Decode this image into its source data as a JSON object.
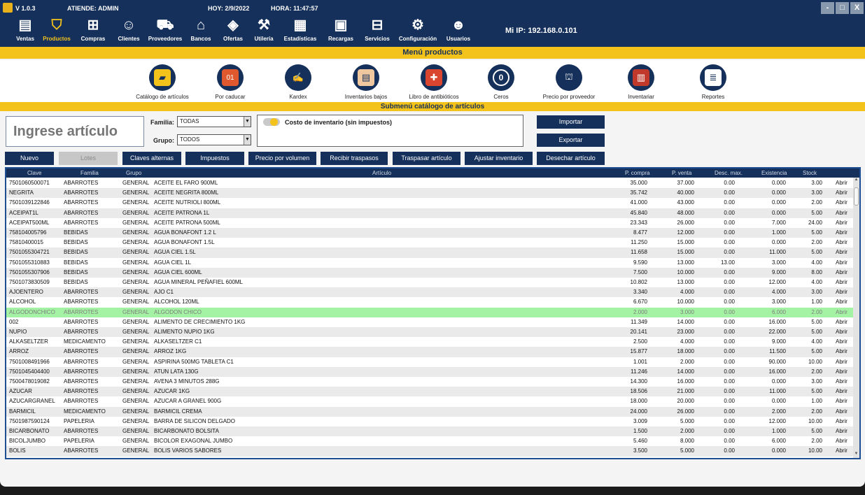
{
  "titlebar": {
    "version": "V 1.0.3",
    "attends": "ATIENDE: ADMIN",
    "date": "HOY: 2/9/2022",
    "time": "HORA: 11:47:57",
    "controls": [
      "-",
      "□",
      "X"
    ]
  },
  "nav": {
    "items": [
      {
        "label": "Ventas",
        "icon": "cash-register-icon"
      },
      {
        "label": "Productos",
        "icon": "basket-icon"
      },
      {
        "label": "Compras",
        "icon": "cart-icon"
      },
      {
        "label": "Clientes",
        "icon": "customers-icon"
      },
      {
        "label": "Proveedores",
        "icon": "delivery-icon"
      },
      {
        "label": "Bancos",
        "icon": "bank-icon"
      },
      {
        "label": "Ofertas",
        "icon": "tag-icon"
      },
      {
        "label": "Utilería",
        "icon": "tools-icon"
      },
      {
        "label": "Estadísticas",
        "icon": "stats-icon"
      },
      {
        "label": "Recargas",
        "icon": "phone-recharge-icon"
      },
      {
        "label": "Servicios",
        "icon": "services-icon"
      },
      {
        "label": "Configuración",
        "icon": "gear-icon"
      },
      {
        "label": "Usuarios",
        "icon": "users-icon"
      }
    ],
    "active": "Productos",
    "ip": "Mi IP: 192.168.0.101"
  },
  "menu_title": "Menú productos",
  "submenu": {
    "items": [
      {
        "label": "Catálogo de artículos",
        "icon": "catalog-icon",
        "color": "#f3c21b"
      },
      {
        "label": "Por caducar",
        "icon": "calendar-icon",
        "color": "#e0592e"
      },
      {
        "label": "Kardex",
        "icon": "kardex-icon",
        "color": "#15305a"
      },
      {
        "label": "Inventarios bajos",
        "icon": "low-inventory-icon",
        "color": "#f0c8a0"
      },
      {
        "label": "Libro de antibióticos",
        "icon": "medical-book-icon",
        "color": "#d9452e"
      },
      {
        "label": "Ceros",
        "icon": "zero-icon",
        "color": "#15305a"
      },
      {
        "label": "Precio por proveedor",
        "icon": "supplier-price-icon",
        "color": "#15305a"
      },
      {
        "label": "Inventariar",
        "icon": "inventory-icon",
        "color": "#c0392b"
      },
      {
        "label": "Reportes",
        "icon": "reports-icon",
        "color": "#ffffff"
      }
    ]
  },
  "submenu_title": "Submenú catálogo de artículos",
  "filters": {
    "search_placeholder": "Ingrese artículo",
    "familia_label": "Familia:",
    "familia_value": "TODAS",
    "grupo_label": "Grupo:",
    "grupo_value": "TODOS",
    "cost_label": "Costo de inventario (sin impuestos)",
    "import_label": "Importar",
    "export_label": "Exportar"
  },
  "actions": [
    "Nuevo",
    "Lotes",
    "Claves alternas",
    "Impuestos",
    "Precio por volumen",
    "Recibir traspasos",
    "Traspasar artículo",
    "Ajustar inventario",
    "Desechar artículo"
  ],
  "table": {
    "columns": [
      "Clave",
      "Familia",
      "Grupo",
      "Artículo",
      "P. compra",
      "P. venta",
      "Desc. max.",
      "Existencia",
      "Stock"
    ],
    "open_label": "Abrir",
    "rows": [
      [
        "7501060500071",
        "ABARROTES",
        "GENERAL",
        "ACEITE EL FARO  900ML",
        "35.000",
        "37.000",
        "0.00",
        "0.000",
        "3.00"
      ],
      [
        "NEGRITA",
        "ABARROTES",
        "GENERAL",
        "ACEITE NEGRITA  800ML",
        "35.742",
        "40.000",
        "0.00",
        "0.000",
        "3.00"
      ],
      [
        "7501039122846",
        "ABARROTES",
        "GENERAL",
        "ACEITE NUTRIOLI  800ML",
        "41.000",
        "43.000",
        "0.00",
        "0.000",
        "2.00"
      ],
      [
        "ACEIPAT1L",
        "ABARROTES",
        "GENERAL",
        "ACEITE PATRONA  1L",
        "45.840",
        "48.000",
        "0.00",
        "0.000",
        "5.00"
      ],
      [
        "ACEIPAT500ML",
        "ABARROTES",
        "GENERAL",
        "ACEITE PATRONA  500ML",
        "23.343",
        "26.000",
        "0.00",
        "7.000",
        "24.00"
      ],
      [
        "758104005796",
        "BEBIDAS",
        "GENERAL",
        "AGUA BONAFONT  1.2 L",
        "8.477",
        "12.000",
        "0.00",
        "1.000",
        "5.00"
      ],
      [
        "75810400015",
        "BEBIDAS",
        "GENERAL",
        "AGUA BONAFONT  1.5L",
        "11.250",
        "15.000",
        "0.00",
        "0.000",
        "2.00"
      ],
      [
        "7501055304721",
        "BEBIDAS",
        "GENERAL",
        "AGUA CIEL  1.5L",
        "11.658",
        "15.000",
        "0.00",
        "11.000",
        "5.00"
      ],
      [
        "7501055310883",
        "BEBIDAS",
        "GENERAL",
        "AGUA CIEL  1L",
        "9.590",
        "13.000",
        "13.00",
        "3.000",
        "4.00"
      ],
      [
        "7501055307906",
        "BEBIDAS",
        "GENERAL",
        "AGUA CIEL  600ML",
        "7.500",
        "10.000",
        "0.00",
        "9.000",
        "8.00"
      ],
      [
        "7501073830509",
        "BEBIDAS",
        "GENERAL",
        "AGUA MINERAL PEÑAFIEL  600ML",
        "10.802",
        "13.000",
        "0.00",
        "12.000",
        "4.00"
      ],
      [
        "AJOENTERO",
        "ABARROTES",
        "GENERAL",
        "AJO  C1",
        "3.340",
        "4.000",
        "0.00",
        "4.000",
        "3.00"
      ],
      [
        "ALCOHOL",
        "ABARROTES",
        "GENERAL",
        "ALCOHOL  120ML",
        "6.670",
        "10.000",
        "0.00",
        "3.000",
        "1.00"
      ],
      [
        "ALGODONCHICO",
        "ABARROTES",
        "GENERAL",
        "ALGODON  CHICO",
        "2.000",
        "3.000",
        "0.00",
        "6.000",
        "2.00"
      ],
      [
        "002",
        "ABARROTES",
        "GENERAL",
        "ALIMENTO DE CRECIMIENTO  1KG",
        "11.349",
        "14.000",
        "0.00",
        "16.000",
        "5.00"
      ],
      [
        "NUPIO",
        "ABARROTES",
        "GENERAL",
        "ALIMENTO NUPIO  1KG",
        "20.141",
        "23.000",
        "0.00",
        "22.000",
        "5.00"
      ],
      [
        "ALKASELTZER",
        "MEDICAMENTO",
        "GENERAL",
        "ALKASELTZER  C1",
        "2.500",
        "4.000",
        "0.00",
        "9.000",
        "4.00"
      ],
      [
        "ARROZ",
        "ABARROTES",
        "GENERAL",
        "ARROZ  1KG",
        "15.877",
        "18.000",
        "0.00",
        "11.500",
        "5.00"
      ],
      [
        "7501008491966",
        "ABARROTES",
        "GENERAL",
        "ASPIRINA 500MG TABLETA  C1",
        "1.001",
        "2.000",
        "0.00",
        "90.000",
        "10.00"
      ],
      [
        "7501045404400",
        "ABARROTES",
        "GENERAL",
        "ATUN LATA 130G",
        "11.246",
        "14.000",
        "0.00",
        "16.000",
        "2.00"
      ],
      [
        "7500478019082",
        "ABARROTES",
        "GENERAL",
        "AVENA 3 MINUTOS  288G",
        "14.300",
        "16.000",
        "0.00",
        "0.000",
        "3.00"
      ],
      [
        "AZUCAR",
        "ABARROTES",
        "GENERAL",
        "AZUCAR  1KG",
        "18.506",
        "21.000",
        "0.00",
        "11.000",
        "5.00"
      ],
      [
        "AZUCARGRANEL",
        "ABARROTES",
        "GENERAL",
        "AZUCAR A GRANEL  900G",
        "18.000",
        "20.000",
        "0.00",
        "0.000",
        "1.00"
      ],
      [
        "BARMICIL",
        "MEDICAMENTO",
        "GENERAL",
        "BARMICIL  CREMA",
        "24.000",
        "26.000",
        "0.00",
        "2.000",
        "2.00"
      ],
      [
        "7501987590124",
        "PAPELERIA",
        "GENERAL",
        "BARRA DE SILICON  DELGADO",
        "3.009",
        "5.000",
        "0.00",
        "12.000",
        "10.00"
      ],
      [
        "BICARBONATO",
        "ABARROTES",
        "GENERAL",
        "BICARBONATO  BOLSITA",
        "1.500",
        "2.000",
        "0.00",
        "1.000",
        "5.00"
      ],
      [
        "BICOLJUMBO",
        "PAPELERIA",
        "GENERAL",
        "BICOLOR EXAGONAL  JUMBO",
        "5.460",
        "8.000",
        "0.00",
        "6.000",
        "2.00"
      ],
      [
        "BOLIS",
        "ABARROTES",
        "GENERAL",
        "BOLIS  VARIOS SABORES",
        "3.500",
        "5.000",
        "0.00",
        "0.000",
        "10.00"
      ]
    ],
    "selected_row": 13
  }
}
